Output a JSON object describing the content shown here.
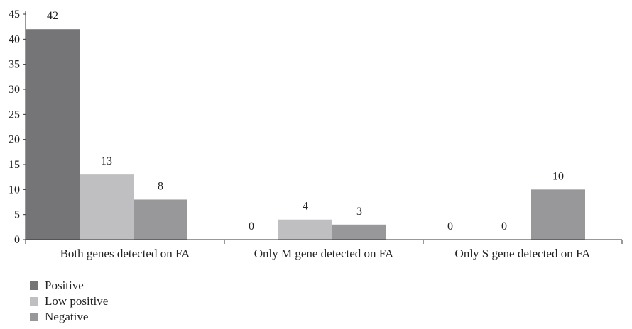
{
  "chart_data": {
    "type": "bar",
    "categories": [
      "Both genes detected on FA",
      "Only M gene detected on FA",
      "Only S gene detected on FA"
    ],
    "series": [
      {
        "name": "Positive",
        "values": [
          42,
          0,
          0
        ],
        "color": "#757577"
      },
      {
        "name": "Low positive",
        "values": [
          13,
          4,
          0
        ],
        "color": "#bfbfc1"
      },
      {
        "name": "Negative",
        "values": [
          8,
          3,
          10
        ],
        "color": "#98989a"
      }
    ],
    "ylim": [
      0,
      45
    ],
    "yticks": [
      0,
      5,
      10,
      15,
      20,
      25,
      30,
      35,
      40,
      45
    ],
    "grid": false,
    "legend_position": "bottom-left"
  }
}
